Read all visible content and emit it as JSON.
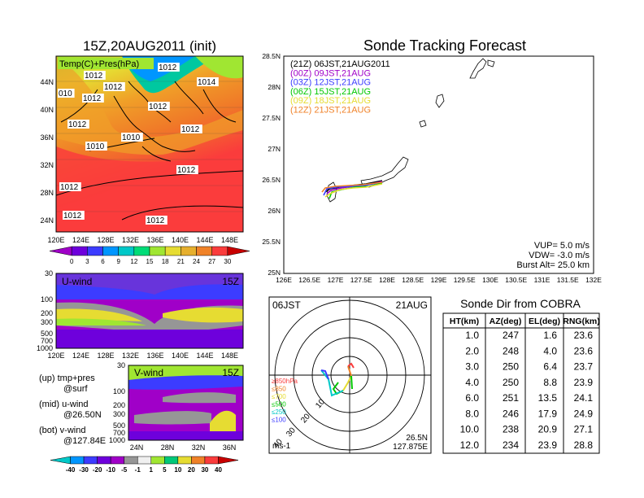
{
  "map_panel": {
    "title": "15Z,20AUG2011 (init)",
    "field_label": "Temp(C)+Pres(hPa)",
    "lat_labels": [
      "44N",
      "40N",
      "36N",
      "32N",
      "28N",
      "24N"
    ],
    "lon_labels": [
      "120E",
      "124E",
      "128E",
      "132E",
      "136E",
      "140E",
      "144E",
      "148E"
    ],
    "isobar_labels": [
      "1012",
      "1012",
      "1012",
      "1014",
      "010",
      "1012",
      "1012",
      "1012",
      "1012",
      "1010",
      "1010",
      "1012",
      "1012",
      "1012",
      "1012"
    ],
    "colorbar_ticks": [
      "0",
      "3",
      "6",
      "9",
      "12",
      "15",
      "18",
      "21",
      "24",
      "27",
      "30"
    ],
    "colorbar_colors": [
      "#a000c8",
      "#6e00dc",
      "#3c3cff",
      "#0096ff",
      "#00c8c8",
      "#00dc78",
      "#a0e632",
      "#e6dc32",
      "#e6af2d",
      "#f08228",
      "#fa3c3c",
      "#c80000"
    ]
  },
  "u_wind_panel": {
    "label": "U-wind",
    "time": "15Z",
    "y_ticks": [
      "30",
      "100",
      "200",
      "300",
      "500",
      "700",
      "1000"
    ],
    "x_ticks": [
      "120E",
      "124E",
      "128E",
      "132E",
      "136E",
      "140E",
      "144E",
      "148E"
    ]
  },
  "v_wind_panel": {
    "label": "V-wind",
    "time": "15Z",
    "y_ticks": [
      "30",
      "100",
      "200",
      "300",
      "500",
      "700",
      "1000"
    ],
    "x_ticks": [
      "24N",
      "28N",
      "32N",
      "36N"
    ]
  },
  "legend_notes": {
    "up": "(up) tmp+pres",
    "up2": "@surf",
    "mid": "(mid) u-wind",
    "mid2": "@26.50N",
    "bot": "(bot) v-wind",
    "bot2": "@127.84E"
  },
  "wind_colorbar": {
    "ticks": [
      "-40",
      "-30",
      "-20",
      "-10",
      "-5",
      "-1",
      "1",
      "5",
      "10",
      "20",
      "30",
      "40"
    ],
    "colors": [
      "#00c8c8",
      "#0096ff",
      "#3c3cff",
      "#6e00dc",
      "#a000c8",
      "#969696",
      "#f0f0f0",
      "#a0e632",
      "#00c878",
      "#e6dc32",
      "#f08228",
      "#fa3c3c",
      "#c80000"
    ]
  },
  "tracking": {
    "title": "Sonde Tracking Forecast",
    "lat_ticks": [
      "28.5N",
      "28N",
      "27.5N",
      "27N",
      "26.5N",
      "26N",
      "25.5N",
      "25N"
    ],
    "lon_ticks": [
      "126E",
      "126.5E",
      "127E",
      "127.5E",
      "128E",
      "128.5E",
      "129E",
      "129.5E",
      "130E",
      "130.5E",
      "131E",
      "131.5E",
      "132E"
    ],
    "legend": [
      {
        "text": "(21Z) 06JST,21AUG2011",
        "color": "#000000"
      },
      {
        "text": "(00Z) 09JST,21AUG",
        "color": "#a000c8"
      },
      {
        "text": "(03Z) 12JST,21AUG",
        "color": "#3c3cff"
      },
      {
        "text": "(06Z) 15JST,21AUG",
        "color": "#00c800"
      },
      {
        "text": "(09Z) 18JST,21AUG",
        "color": "#e6dc32"
      },
      {
        "text": "(12Z) 21JST,21AUG",
        "color": "#f08228"
      }
    ],
    "params": [
      "VUP= 5.0 m/s",
      "VDW= -3.0 m/s",
      "Burst Alt= 25.0 km"
    ]
  },
  "polar": {
    "time_left": "06JST",
    "time_right": "21AUG",
    "ring_labels": [
      "10",
      "20",
      "30",
      "40"
    ],
    "height_legend": [
      {
        "text": "≥850hPa",
        "color": "#fa3c3c"
      },
      {
        "text": "≤850",
        "color": "#f08228"
      },
      {
        "text": "≤700",
        "color": "#e6dc32"
      },
      {
        "text": "≤500",
        "color": "#00c800"
      },
      {
        "text": "≤250",
        "color": "#00c8c8"
      },
      {
        "text": "≤100",
        "color": "#3c3cff"
      }
    ],
    "unit": "ms-1",
    "lat": "26.5N",
    "lon": "127.875E"
  },
  "chart_data": {
    "type": "table",
    "title": "Sonde Dir from COBRA",
    "columns": [
      "HT(km)",
      "AZ(deg)",
      "EL(deg)",
      "RNG(km)"
    ],
    "rows": [
      [
        "1.0",
        "247",
        "1.6",
        "23.6"
      ],
      [
        "2.0",
        "248",
        "4.0",
        "23.6"
      ],
      [
        "3.0",
        "250",
        "6.4",
        "23.7"
      ],
      [
        "4.0",
        "250",
        "8.8",
        "23.9"
      ],
      [
        "6.0",
        "251",
        "13.5",
        "24.1"
      ],
      [
        "8.0",
        "246",
        "17.9",
        "24.9"
      ],
      [
        "10.0",
        "238",
        "20.9",
        "27.1"
      ],
      [
        "12.0",
        "234",
        "23.9",
        "28.8"
      ]
    ]
  }
}
